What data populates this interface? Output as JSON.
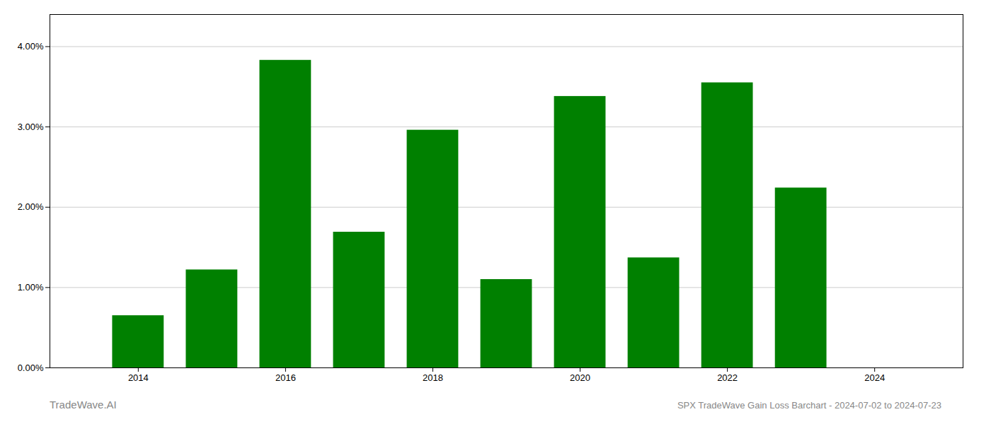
{
  "chart_data": {
    "type": "bar",
    "x": [
      2014,
      2015,
      2016,
      2017,
      2018,
      2019,
      2020,
      2021,
      2022,
      2023
    ],
    "values": [
      0.0065,
      0.0122,
      0.0383,
      0.0169,
      0.0296,
      0.011,
      0.0338,
      0.0137,
      0.0355,
      0.0224
    ],
    "color": "#008000",
    "xlim": [
      2012.8,
      2025.2
    ],
    "xticks": [
      2014,
      2016,
      2018,
      2020,
      2022,
      2024
    ],
    "ylim": [
      0,
      0.044
    ],
    "yticks": [
      {
        "value": 0.0,
        "label": "0.00%"
      },
      {
        "value": 0.01,
        "label": "1.00%"
      },
      {
        "value": 0.02,
        "label": "2.00%"
      },
      {
        "value": 0.03,
        "label": "3.00%"
      },
      {
        "value": 0.04,
        "label": "4.00%"
      }
    ],
    "grid": true,
    "annotations": [
      "TradeWave.AI",
      "SPX TradeWave Gain Loss Barchart - 2024-07-02 to 2024-07-23"
    ]
  }
}
